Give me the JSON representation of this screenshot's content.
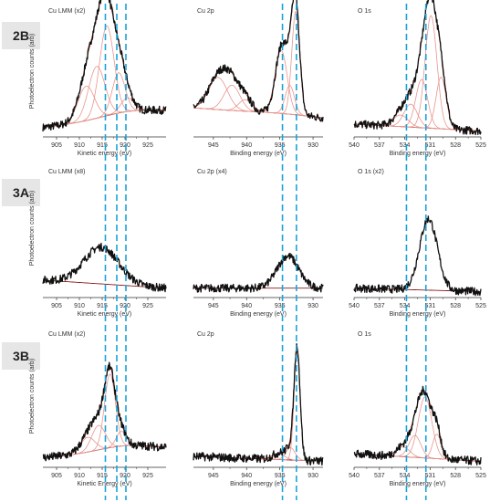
{
  "rows": [
    {
      "id": "2B",
      "ylabel": "Photoelectron counts (arb)"
    },
    {
      "id": "3A",
      "ylabel": "Photoelectron counts (arb)"
    },
    {
      "id": "3B",
      "ylabel": "Photoelectron counts (arb)"
    }
  ],
  "colors": {
    "data": "#111111",
    "fit": "#e8958e",
    "envelope": "#c0392b",
    "background": "#8b1a1a",
    "guide": "#1aa3d9",
    "axis": "#333333"
  },
  "chart_data": [
    {
      "type": "line",
      "row": "2B",
      "title": "Cu LMM  (x2)",
      "xlabel": "Kinetic energy (eV)",
      "xlim": [
        902,
        929
      ],
      "x_reversed": false,
      "xticks": [
        905,
        910,
        915,
        920,
        925
      ],
      "guides": [
        915.7,
        918.2,
        920.2
      ],
      "peaks": [
        {
          "center": 916,
          "height": 0.78,
          "width": 1.6
        },
        {
          "center": 913.8,
          "height": 0.45,
          "width": 1.8
        },
        {
          "center": 911.5,
          "height": 0.3,
          "width": 1.8
        },
        {
          "center": 918.6,
          "height": 0.35,
          "width": 1.4
        },
        {
          "center": 920.5,
          "height": 0.12,
          "width": 1.4
        }
      ],
      "baseline": {
        "left": 0.05,
        "right": 0.18,
        "center": 921,
        "bump": 0.05
      }
    },
    {
      "type": "line",
      "row": "2B",
      "title": "Cu 2p",
      "xlabel": "Binding energy (eV)",
      "xlim": [
        948,
        928.5
      ],
      "x_reversed": true,
      "xticks": [
        945,
        940,
        935,
        930
      ],
      "guides": [
        934.6,
        932.5
      ],
      "peaks": [
        {
          "center": 944.3,
          "height": 0.28,
          "width": 1.4
        },
        {
          "center": 942.2,
          "height": 0.22,
          "width": 1.2
        },
        {
          "center": 940.2,
          "height": 0.1,
          "width": 1.0
        },
        {
          "center": 934.8,
          "height": 0.55,
          "width": 0.9
        },
        {
          "center": 932.6,
          "height": 0.9,
          "width": 0.6
        },
        {
          "center": 933.5,
          "height": 0.25,
          "width": 0.7
        }
      ],
      "baseline": {
        "left": 0.22,
        "right": 0.12,
        "center": 934,
        "bump": 0.02
      }
    },
    {
      "type": "line",
      "row": "2B",
      "title": "O 1s",
      "xlabel": "Binding energy (eV)",
      "xlim": [
        540,
        525
      ],
      "x_reversed": true,
      "xticks": [
        540,
        537,
        534,
        531,
        528,
        525
      ],
      "guides": [
        533.8,
        531.5
      ],
      "peaks": [
        {
          "center": 530.9,
          "height": 0.98,
          "width": 0.7
        },
        {
          "center": 529.7,
          "height": 0.45,
          "width": 0.6
        },
        {
          "center": 532.0,
          "height": 0.42,
          "width": 0.7
        },
        {
          "center": 533.3,
          "height": 0.2,
          "width": 0.8
        },
        {
          "center": 534.5,
          "height": 0.1,
          "width": 0.9
        }
      ],
      "baseline": {
        "left": 0.08,
        "right": 0.02,
        "center": 532,
        "bump": 0.0
      }
    },
    {
      "type": "line",
      "row": "3A",
      "title": "Cu LMM  (x8)",
      "xlabel": "Kinetic energy (eV)",
      "xlim": [
        902,
        929
      ],
      "x_reversed": false,
      "xticks": [
        905,
        910,
        915,
        920,
        925
      ],
      "guides": [
        915.7,
        918.2,
        920.2
      ],
      "peaks": [
        {
          "center": 914.8,
          "height": 0.32,
          "width": 3.8
        }
      ],
      "baseline": {
        "left": 0.12,
        "right": 0.05,
        "center": 915,
        "bump": 0.0
      }
    },
    {
      "type": "line",
      "row": "3A",
      "title": "Cu 2p  (x4)",
      "xlabel": "Binding energy (eV)",
      "xlim": [
        948,
        928.5
      ],
      "x_reversed": true,
      "xticks": [
        945,
        940,
        935,
        930
      ],
      "guides": [
        934.6,
        932.5
      ],
      "peaks": [
        {
          "center": 933.8,
          "height": 0.28,
          "width": 1.6
        }
      ],
      "baseline": {
        "left": 0.05,
        "right": 0.05,
        "center": 934,
        "bump": 0.0
      }
    },
    {
      "type": "line",
      "row": "3A",
      "title": "O 1s  (x2)",
      "xlabel": "Binding energy (eV)",
      "xlim": [
        540,
        525
      ],
      "x_reversed": true,
      "xticks": [
        540,
        537,
        534,
        531,
        528,
        525
      ],
      "guides": [
        533.8,
        531.5
      ],
      "peaks": [
        {
          "center": 531.2,
          "height": 0.62,
          "width": 1.05
        }
      ],
      "baseline": {
        "left": 0.05,
        "right": 0.02,
        "center": 531,
        "bump": 0.0
      }
    },
    {
      "type": "line",
      "row": "3B",
      "title": "Cu LMM  (x2)",
      "xlabel": "Kinetic Energy (eV)",
      "xlim": [
        902,
        929
      ],
      "x_reversed": false,
      "xticks": [
        905,
        910,
        915,
        920,
        925
      ],
      "guides": [
        915.7,
        918.2,
        920.2
      ],
      "peaks": [
        {
          "center": 916.7,
          "height": 0.6,
          "width": 1.2
        },
        {
          "center": 914.2,
          "height": 0.2,
          "width": 1.5
        },
        {
          "center": 911.8,
          "height": 0.12,
          "width": 1.6
        },
        {
          "center": 919.2,
          "height": 0.12,
          "width": 1.1
        }
      ],
      "baseline": {
        "left": 0.05,
        "right": 0.12,
        "center": 920,
        "bump": 0.05
      }
    },
    {
      "type": "line",
      "row": "3B",
      "title": "Cu 2p",
      "xlabel": "Binding energy (eV)",
      "xlim": [
        948,
        928.5
      ],
      "x_reversed": true,
      "xticks": [
        945,
        940,
        935,
        930
      ],
      "guides": [
        934.6,
        932.5
      ],
      "peaks": [
        {
          "center": 932.4,
          "height": 0.9,
          "width": 0.45
        },
        {
          "center": 933.4,
          "height": 0.1,
          "width": 0.7
        },
        {
          "center": 935.2,
          "height": 0.05,
          "width": 0.9
        }
      ],
      "baseline": {
        "left": 0.06,
        "right": 0.02,
        "center": 934,
        "bump": 0.0
      }
    },
    {
      "type": "line",
      "row": "3B",
      "title": "O 1s",
      "xlabel": "Binding energy (eV)",
      "xlim": [
        540,
        525
      ],
      "x_reversed": true,
      "xticks": [
        540,
        537,
        534,
        531,
        528,
        525
      ],
      "guides": [
        533.8,
        531.5
      ],
      "peaks": [
        {
          "center": 531.6,
          "height": 0.5,
          "width": 0.8
        },
        {
          "center": 530.2,
          "height": 0.2,
          "width": 0.5
        },
        {
          "center": 532.8,
          "height": 0.18,
          "width": 0.7
        },
        {
          "center": 534.2,
          "height": 0.08,
          "width": 0.8
        }
      ],
      "baseline": {
        "left": 0.08,
        "right": 0.02,
        "center": 532,
        "bump": 0.0
      }
    }
  ]
}
